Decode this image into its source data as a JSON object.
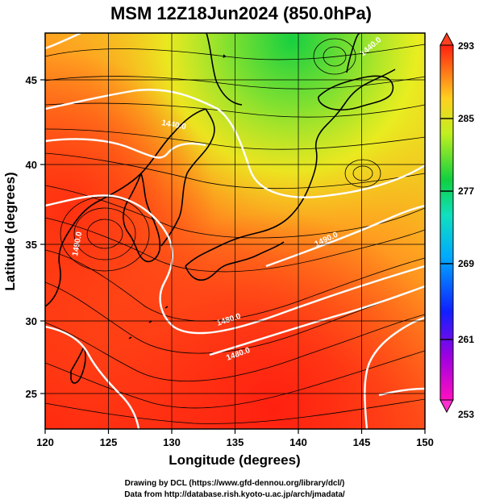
{
  "title": "MSM 12Z18Jun2024 (850.0hPa)",
  "xlabel": "Longitude (degrees)",
  "ylabel": "Latitude  (degrees)",
  "x_ticks": [
    "120",
    "125",
    "130",
    "135",
    "140",
    "145",
    "150"
  ],
  "y_ticks": [
    "25",
    "30",
    "35",
    "40",
    "45"
  ],
  "x_range": [
    120,
    150
  ],
  "y_range": [
    22.5,
    47.5
  ],
  "colorbar": {
    "min": 253,
    "max": 293,
    "labels": [
      "293",
      "285",
      "277",
      "269",
      "261",
      "253"
    ]
  },
  "contour_labels": [
    "1440.0",
    "1440.0",
    "1490.0",
    "1490.0",
    "1480.0",
    "1480.0",
    "1500.0"
  ],
  "credits": {
    "line1": "Drawing by DCL (https://www.gfd-dennou.org/library/dcl/)",
    "line2": "Data from http://database.rish.kyoto-u.ac.jp/arch/jmadata/"
  }
}
